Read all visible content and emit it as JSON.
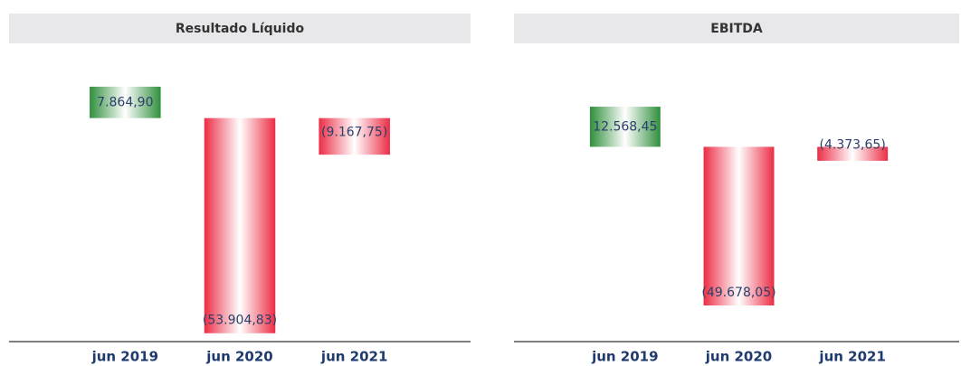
{
  "chart_data": [
    {
      "type": "bar",
      "title": "Resultado Líquido",
      "categories": [
        "jun 2019",
        "jun 2020",
        "jun 2021"
      ],
      "values": [
        7864.9,
        -53904.83,
        -9167.75
      ],
      "value_labels": [
        "7.864,90",
        "(53.904,83)",
        "(9.167,75)"
      ],
      "colors": [
        "#2f8f3c",
        "#ec2d45",
        "#ec2d45"
      ],
      "ylim": [
        -56000,
        16000
      ]
    },
    {
      "type": "bar",
      "title": "EBITDA",
      "categories": [
        "jun 2019",
        "jun 2020",
        "jun 2021"
      ],
      "values": [
        12568.45,
        -49678.05,
        -4373.65
      ],
      "value_labels": [
        "12.568,45",
        "(49.678,05)",
        "(4.373,65)"
      ],
      "colors": [
        "#2f8f3c",
        "#ec2d45",
        "#ec2d45"
      ],
      "ylim": [
        -61000,
        29000
      ]
    }
  ]
}
